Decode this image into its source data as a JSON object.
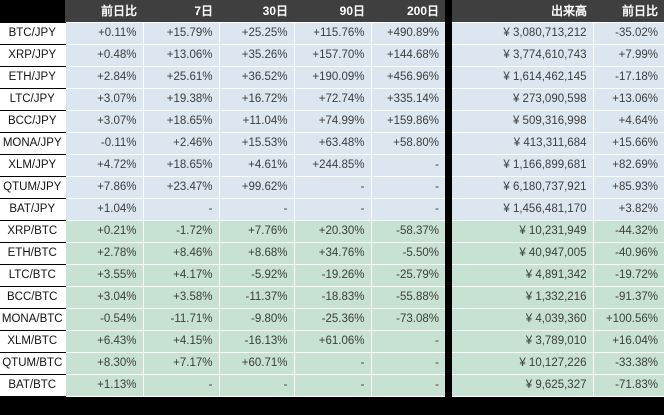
{
  "colors": {
    "page_bg": "#000000",
    "header_bg": "#3f3f3f",
    "header_text": "#ffffff",
    "jpy_row_bg": "#dce6f1",
    "btc_row_bg": "#c7e1d2",
    "label_bg": "#ffffff",
    "label_text": "#141414",
    "cell_text": "#3d3d3d",
    "grid_line": "#ffffff",
    "divider": "#000000"
  },
  "chart_data": {
    "type": "table",
    "columns": [
      "前日比",
      "7日",
      "30日",
      "90日",
      "200日",
      "出来高",
      "前日比"
    ],
    "row_groups_note": "group jpy = light blue rows, group btc = light green rows",
    "rows": [
      {
        "pair": "BTC/JPY",
        "group": "jpy",
        "values": [
          "+0.11%",
          "+15.79%",
          "+25.25%",
          "+115.76%",
          "+490.89%",
          "¥ 3,080,713,212",
          "-35.02%"
        ]
      },
      {
        "pair": "XRP/JPY",
        "group": "jpy",
        "values": [
          "+0.48%",
          "+13.06%",
          "+35.26%",
          "+157.70%",
          "+144.68%",
          "¥ 3,774,610,743",
          "+7.99%"
        ]
      },
      {
        "pair": "ETH/JPY",
        "group": "jpy",
        "values": [
          "+2.84%",
          "+25.61%",
          "+36.52%",
          "+190.09%",
          "+456.96%",
          "¥ 1,614,462,145",
          "-17.18%"
        ]
      },
      {
        "pair": "LTC/JPY",
        "group": "jpy",
        "values": [
          "+3.07%",
          "+19.38%",
          "+16.72%",
          "+72.74%",
          "+335.14%",
          "¥ 273,090,598",
          "+13.06%"
        ]
      },
      {
        "pair": "BCC/JPY",
        "group": "jpy",
        "values": [
          "+3.07%",
          "+18.65%",
          "+11.04%",
          "+74.99%",
          "+159.86%",
          "¥ 509,316,998",
          "+4.64%"
        ]
      },
      {
        "pair": "MONA/JPY",
        "group": "jpy",
        "values": [
          "-0.11%",
          "+2.46%",
          "+15.53%",
          "+63.48%",
          "+58.80%",
          "¥ 413,311,684",
          "+15.66%"
        ]
      },
      {
        "pair": "XLM/JPY",
        "group": "jpy",
        "values": [
          "+4.72%",
          "+18.65%",
          "+4.61%",
          "+244.85%",
          "-",
          "¥ 1,166,899,681",
          "+82.69%"
        ]
      },
      {
        "pair": "QTUM/JPY",
        "group": "jpy",
        "values": [
          "+7.86%",
          "+23.47%",
          "+99.62%",
          "-",
          "-",
          "¥ 6,180,737,921",
          "+85.93%"
        ]
      },
      {
        "pair": "BAT/JPY",
        "group": "jpy",
        "values": [
          "+1.04%",
          "-",
          "-",
          "-",
          "-",
          "¥ 1,456,481,170",
          "+3.82%"
        ]
      },
      {
        "pair": "XRP/BTC",
        "group": "btc",
        "values": [
          "+0.21%",
          "-1.72%",
          "+7.76%",
          "+20.30%",
          "-58.37%",
          "¥ 10,231,949",
          "-44.32%"
        ]
      },
      {
        "pair": "ETH/BTC",
        "group": "btc",
        "values": [
          "+2.78%",
          "+8.46%",
          "+8.68%",
          "+34.76%",
          "-5.50%",
          "¥ 40,947,005",
          "-40.96%"
        ]
      },
      {
        "pair": "LTC/BTC",
        "group": "btc",
        "values": [
          "+3.55%",
          "+4.17%",
          "-5.92%",
          "-19.26%",
          "-25.79%",
          "¥ 4,891,342",
          "-19.72%"
        ]
      },
      {
        "pair": "BCC/BTC",
        "group": "btc",
        "values": [
          "+3.04%",
          "+3.58%",
          "-11.37%",
          "-18.83%",
          "-55.88%",
          "¥ 1,332,216",
          "-91.37%"
        ]
      },
      {
        "pair": "MONA/BTC",
        "group": "btc",
        "values": [
          "-0.54%",
          "-11.71%",
          "-9.80%",
          "-25.36%",
          "-73.08%",
          "¥ 4,039,360",
          "+100.56%"
        ]
      },
      {
        "pair": "XLM/BTC",
        "group": "btc",
        "values": [
          "+6.43%",
          "+4.15%",
          "-16.13%",
          "+61.06%",
          "-",
          "¥ 3,789,010",
          "+16.04%"
        ]
      },
      {
        "pair": "QTUM/BTC",
        "group": "btc",
        "values": [
          "+8.30%",
          "+7.17%",
          "+60.71%",
          "-",
          "-",
          "¥ 10,127,226",
          "-33.38%"
        ]
      },
      {
        "pair": "BAT/BTC",
        "group": "btc",
        "values": [
          "+1.13%",
          "-",
          "-",
          "-",
          "-",
          "¥ 9,625,327",
          "-71.83%"
        ]
      }
    ]
  }
}
